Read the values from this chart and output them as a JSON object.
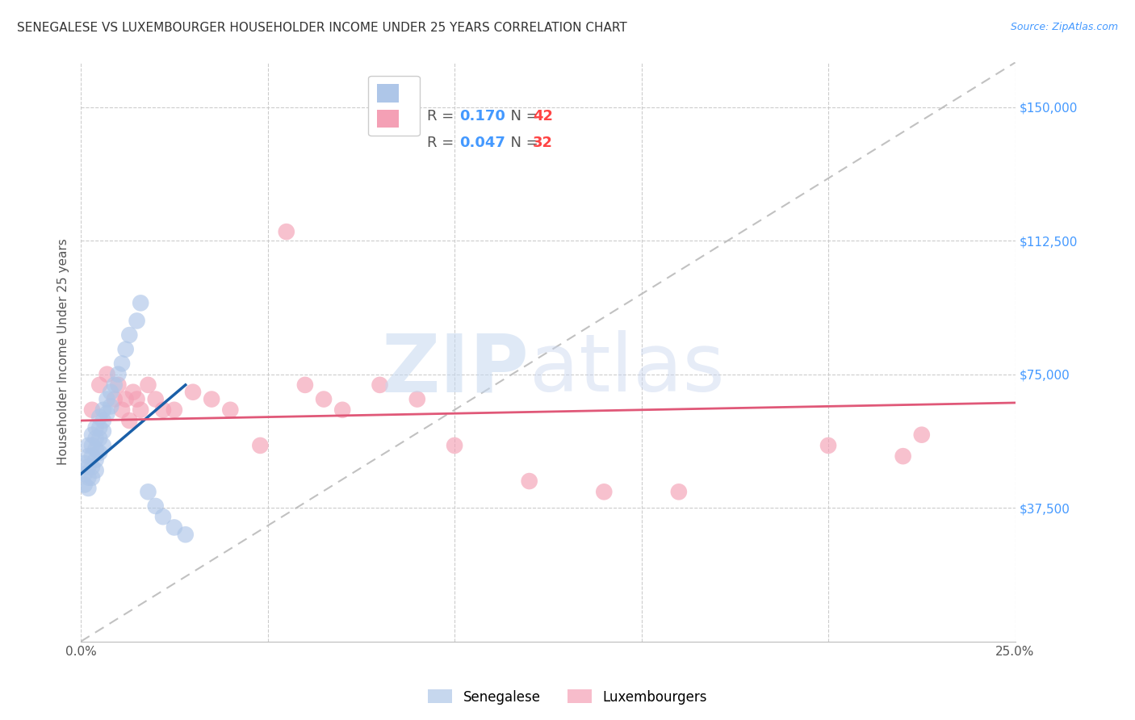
{
  "title": "SENEGALESE VS LUXEMBOURGER HOUSEHOLDER INCOME UNDER 25 YEARS CORRELATION CHART",
  "source": "Source: ZipAtlas.com",
  "xlabel": "",
  "ylabel": "Householder Income Under 25 years",
  "xlim": [
    0.0,
    0.25
  ],
  "ylim": [
    0,
    162500
  ],
  "yticks": [
    37500,
    75000,
    112500,
    150000
  ],
  "ytick_labels": [
    "$37,500",
    "$75,000",
    "$112,500",
    "$150,000"
  ],
  "xticks": [
    0.0,
    0.05,
    0.1,
    0.15,
    0.2,
    0.25
  ],
  "xtick_labels": [
    "0.0%",
    "",
    "",
    "",
    "",
    "25.0%"
  ],
  "background_color": "#ffffff",
  "grid_color": "#cccccc",
  "senegalese_color": "#aec6e8",
  "luxembourger_color": "#f4a0b5",
  "senegalese_R": 0.17,
  "senegalese_N": 42,
  "luxembourger_R": 0.047,
  "luxembourger_N": 32,
  "legend_box_color_blue": "#aec6e8",
  "legend_box_color_pink": "#f4a0b5",
  "trend_blue_color": "#1a5fa8",
  "trend_pink_color": "#e05878",
  "dashed_line_color": "#bbbbbb",
  "senegalese_x": [
    0.001,
    0.001,
    0.001,
    0.002,
    0.002,
    0.002,
    0.002,
    0.002,
    0.003,
    0.003,
    0.003,
    0.003,
    0.003,
    0.004,
    0.004,
    0.004,
    0.004,
    0.004,
    0.005,
    0.005,
    0.005,
    0.005,
    0.006,
    0.006,
    0.006,
    0.006,
    0.007,
    0.007,
    0.008,
    0.008,
    0.009,
    0.01,
    0.011,
    0.012,
    0.013,
    0.015,
    0.016,
    0.018,
    0.02,
    0.022,
    0.025,
    0.028
  ],
  "senegalese_y": [
    50000,
    47000,
    44000,
    55000,
    52000,
    49000,
    46000,
    43000,
    58000,
    55000,
    52000,
    49000,
    46000,
    60000,
    57000,
    54000,
    51000,
    48000,
    63000,
    60000,
    57000,
    53000,
    65000,
    62000,
    59000,
    55000,
    68000,
    64000,
    70000,
    66000,
    72000,
    75000,
    78000,
    82000,
    86000,
    90000,
    95000,
    42000,
    38000,
    35000,
    32000,
    30000
  ],
  "luxembourger_x": [
    0.003,
    0.005,
    0.007,
    0.009,
    0.01,
    0.011,
    0.012,
    0.013,
    0.014,
    0.015,
    0.016,
    0.018,
    0.02,
    0.022,
    0.025,
    0.03,
    0.035,
    0.04,
    0.048,
    0.055,
    0.06,
    0.065,
    0.07,
    0.08,
    0.09,
    0.1,
    0.12,
    0.14,
    0.16,
    0.2,
    0.22,
    0.225
  ],
  "luxembourger_y": [
    65000,
    72000,
    75000,
    68000,
    72000,
    65000,
    68000,
    62000,
    70000,
    68000,
    65000,
    72000,
    68000,
    65000,
    65000,
    70000,
    68000,
    65000,
    55000,
    115000,
    72000,
    68000,
    65000,
    72000,
    68000,
    55000,
    45000,
    42000,
    42000,
    55000,
    52000,
    58000
  ],
  "sen_trend_x": [
    0.0,
    0.028
  ],
  "sen_trend_y": [
    47000,
    72000
  ],
  "lux_trend_x": [
    0.0,
    0.25
  ],
  "lux_trend_y": [
    62000,
    67000
  ]
}
